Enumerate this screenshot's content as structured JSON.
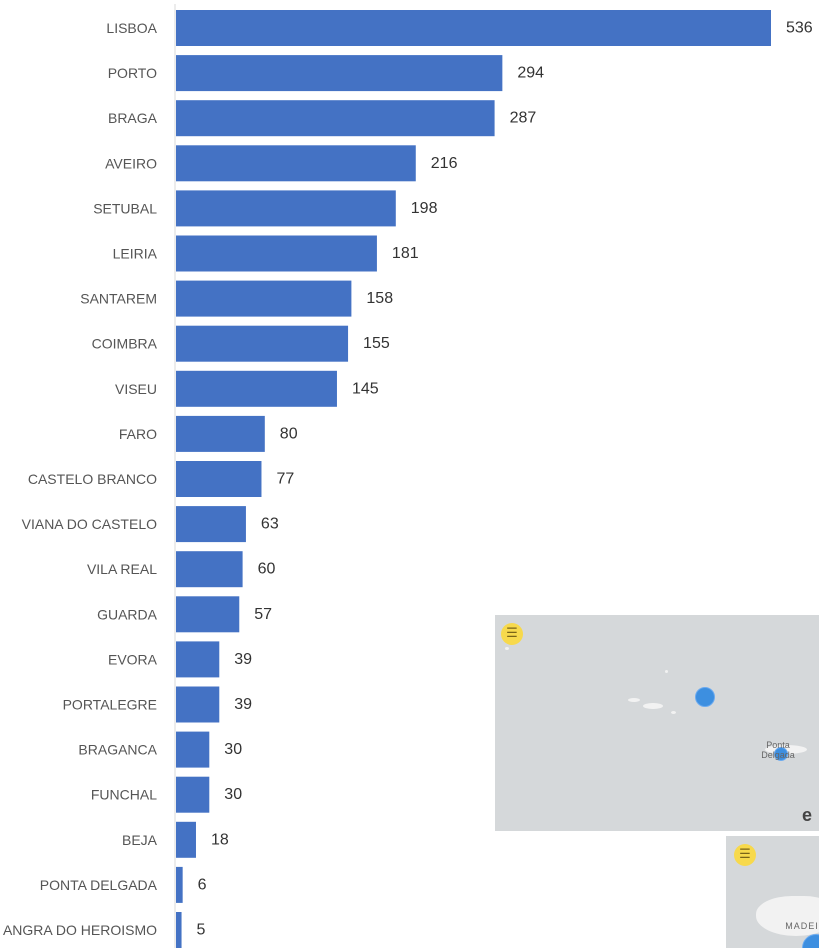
{
  "chart_data": {
    "type": "bar",
    "orientation": "horizontal",
    "categories": [
      "LISBOA",
      "PORTO",
      "BRAGA",
      "AVEIRO",
      "SETUBAL",
      "LEIRIA",
      "SANTAREM",
      "COIMBRA",
      "VISEU",
      "FARO",
      "CASTELO BRANCO",
      "VIANA DO CASTELO",
      "VILA REAL",
      "GUARDA",
      "EVORA",
      "PORTALEGRE",
      "BRAGANCA",
      "FUNCHAL",
      "BEJA",
      "PONTA DELGADA",
      "ANGRA DO HEROISMO"
    ],
    "values": [
      536,
      294,
      287,
      216,
      198,
      181,
      158,
      155,
      145,
      80,
      77,
      63,
      60,
      57,
      39,
      39,
      30,
      30,
      18,
      6,
      5
    ],
    "bar_color": "#4472c4",
    "grid": false,
    "legend": "none"
  },
  "maps": {
    "top_label": "Ponta Delgada",
    "bottom_label": "MADEI",
    "menu_icon": "menu-icon",
    "logo_glyph": "e"
  }
}
